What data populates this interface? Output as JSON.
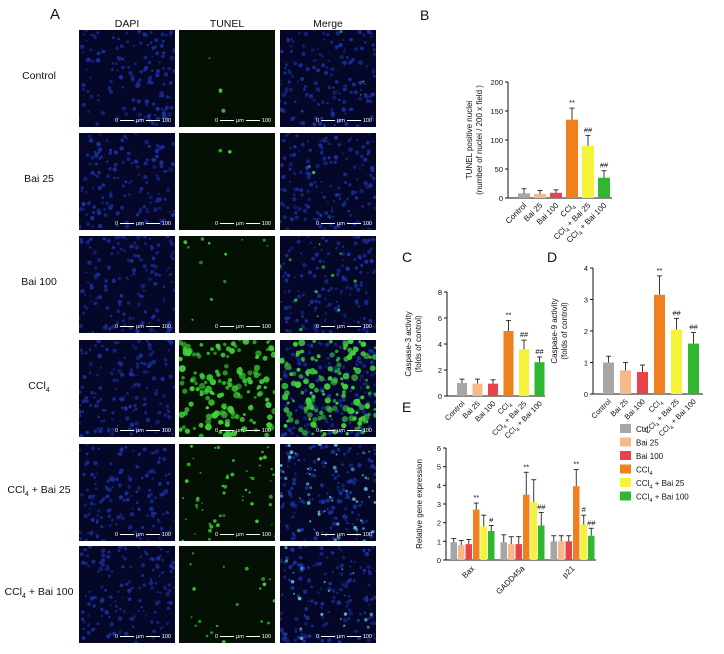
{
  "panel_a": {
    "letter": "A",
    "columns": [
      "DAPI",
      "TUNEL",
      "Merge"
    ],
    "rows": [
      {
        "label": "Control",
        "label_sub": "",
        "label_tail": ""
      },
      {
        "label": "Bai 25",
        "label_sub": "",
        "label_tail": ""
      },
      {
        "label": "Bai 100",
        "label_sub": "",
        "label_tail": ""
      },
      {
        "label": "CCl",
        "label_sub": "4",
        "label_tail": ""
      },
      {
        "label": "CCl",
        "label_sub": "4",
        "label_tail": " + Bai 25"
      },
      {
        "label": "CCl",
        "label_sub": "4",
        "label_tail": " + Bai 100"
      }
    ],
    "scale_bar": {
      "start": "0",
      "unit": "μm",
      "end": "100"
    },
    "colors": {
      "dapi": "#1a2f9e",
      "tunel": "#3fd23a",
      "merge_cyan": "#5fb8c8"
    }
  },
  "groups": [
    "Control",
    "Bai 25",
    "Bai 100",
    "CCl4",
    "CCl4 + Bai 25",
    "CCl4 + Bai 100"
  ],
  "colors": [
    "#a6a6a6",
    "#f5b98a",
    "#e8424b",
    "#f07f1e",
    "#f5f23a",
    "#2fb82f"
  ],
  "chart_data": [
    {
      "letter": "B",
      "type": "bar",
      "ylabel": "TUNEL positive nuclei",
      "ylabel2": "(number of nuclei / 200 x field )",
      "yticks": [
        0,
        50,
        100,
        150,
        200
      ],
      "ylim": [
        0,
        200
      ],
      "values": [
        8,
        7,
        9,
        135,
        90,
        35
      ],
      "errors": [
        8,
        6,
        5,
        20,
        18,
        12
      ],
      "annotations": [
        "",
        "",
        "",
        "**",
        "##",
        "##"
      ]
    },
    {
      "letter": "C",
      "type": "bar",
      "ylabel": "Caspase-3 activity",
      "ylabel2": "(folds of control)",
      "yticks": [
        0,
        2,
        4,
        6,
        8
      ],
      "ylim": [
        0,
        8
      ],
      "values": [
        1.0,
        0.95,
        0.95,
        5.0,
        3.6,
        2.6
      ],
      "errors": [
        0.3,
        0.35,
        0.3,
        0.8,
        0.7,
        0.4
      ],
      "annotations": [
        "",
        "",
        "",
        "**",
        "##",
        "##"
      ]
    },
    {
      "letter": "D",
      "type": "bar",
      "ylabel": "Caspase-9 activity",
      "ylabel2": "(folds of control)",
      "yticks": [
        0,
        1,
        2,
        3,
        4
      ],
      "ylim": [
        0,
        4
      ],
      "values": [
        1.0,
        0.75,
        0.7,
        3.15,
        2.05,
        1.6
      ],
      "errors": [
        0.2,
        0.25,
        0.22,
        0.6,
        0.35,
        0.35
      ],
      "annotations": [
        "",
        "",
        "",
        "**",
        "##",
        "##"
      ]
    },
    {
      "letter": "E",
      "type": "bar",
      "ylabel": "Relative gene expression",
      "yticks": [
        0,
        1,
        2,
        3,
        4,
        5,
        6
      ],
      "ylim": [
        0,
        6
      ],
      "categories": [
        "Bax",
        "GADD45a",
        "p21"
      ],
      "legend": [
        "Ctrl",
        "Bai 25",
        "Bai 100",
        "CCl4",
        "CCl4 + Bai 25",
        "CCl4 + Bai 100"
      ],
      "legend_position": "right",
      "series_values": [
        [
          0.95,
          0.95,
          1.0
        ],
        [
          0.8,
          0.85,
          1.0
        ],
        [
          0.85,
          0.85,
          1.0
        ],
        [
          2.7,
          3.5,
          3.95
        ],
        [
          1.8,
          3.1,
          1.9
        ],
        [
          1.55,
          1.85,
          1.3
        ]
      ],
      "series_errors": [
        [
          0.2,
          0.4,
          0.3
        ],
        [
          0.25,
          0.4,
          0.3
        ],
        [
          0.25,
          0.4,
          0.3
        ],
        [
          0.35,
          1.2,
          0.9
        ],
        [
          0.6,
          1.2,
          0.5
        ],
        [
          0.3,
          0.7,
          0.4
        ]
      ],
      "annotations": [
        [
          "",
          "",
          ""
        ],
        [
          "",
          "",
          ""
        ],
        [
          "",
          "",
          ""
        ],
        [
          "**",
          "**",
          "**"
        ],
        [
          "",
          "",
          "#"
        ],
        [
          "#",
          "##",
          "##"
        ]
      ]
    }
  ]
}
